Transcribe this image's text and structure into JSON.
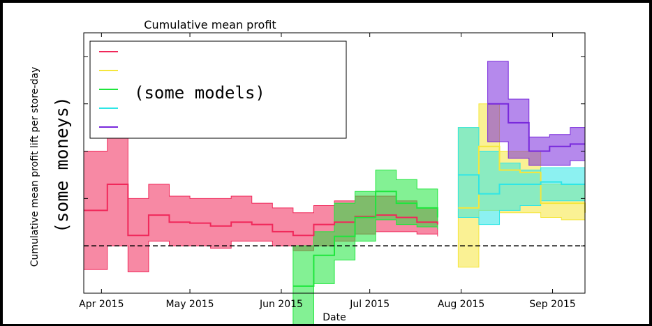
{
  "chart_data": {
    "type": "area",
    "title": "Cumulative mean profit",
    "xlabel": "Date",
    "ylabel": "Cumulative mean profit lift per store-day",
    "y_overlay": "(some moneys)",
    "legend_overlay": "(some models)",
    "legend_placement": "top-left",
    "grid": false,
    "x_ticks": [
      "Apr 2015",
      "May 2015",
      "Jun 2015",
      "Jul 2015",
      "Aug 2015",
      "Sep 2015"
    ],
    "xlim": [
      "2015-03-26",
      "2015-09-12"
    ],
    "ylim": [
      -1,
      4.5
    ],
    "baseline": 0,
    "series": [
      {
        "color": "#f0285a",
        "x": [
          "2015-03-26",
          "2015-04-03",
          "2015-04-10",
          "2015-04-17",
          "2015-04-24",
          "2015-05-01",
          "2015-05-08",
          "2015-05-15",
          "2015-05-22",
          "2015-05-29",
          "2015-06-05",
          "2015-06-12",
          "2015-06-19",
          "2015-06-26",
          "2015-07-03",
          "2015-07-10",
          "2015-07-17",
          "2015-07-24"
        ],
        "y": [
          0.75,
          1.3,
          0.22,
          0.65,
          0.5,
          0.48,
          0.42,
          0.5,
          0.45,
          0.3,
          0.22,
          0.45,
          0.5,
          0.62,
          0.65,
          0.6,
          0.5,
          0.45
        ],
        "lo": [
          -0.5,
          0.0,
          -0.55,
          0.1,
          0.0,
          0.0,
          -0.05,
          0.1,
          0.1,
          0.0,
          -0.1,
          0.0,
          0.1,
          0.25,
          0.3,
          0.3,
          0.25,
          0.2
        ],
        "hi": [
          2.0,
          2.4,
          1.0,
          1.3,
          1.05,
          1.0,
          1.0,
          1.05,
          0.9,
          0.8,
          0.7,
          0.85,
          0.95,
          1.05,
          1.05,
          0.95,
          0.8,
          0.75
        ]
      },
      {
        "color": "#f5e63c",
        "x": [
          "2015-07-31",
          "2015-08-07",
          "2015-08-14",
          "2015-08-21",
          "2015-08-28",
          "2015-09-04",
          "2015-09-12"
        ],
        "y": [
          0.8,
          2.1,
          1.6,
          1.55,
          0.9,
          0.9,
          0.7
        ],
        "lo": [
          -0.45,
          0.75,
          0.7,
          0.7,
          0.6,
          0.55,
          0.3
        ],
        "hi": [
          2.5,
          3.0,
          2.0,
          2.0,
          1.3,
          1.3,
          1.05
        ]
      },
      {
        "color": "#1ee63c",
        "x": [
          "2015-06-05",
          "2015-06-12",
          "2015-06-19",
          "2015-06-26",
          "2015-07-03",
          "2015-07-10",
          "2015-07-17",
          "2015-07-24"
        ],
        "y": [
          -0.85,
          -0.2,
          0.2,
          0.6,
          1.15,
          0.9,
          0.8,
          0.6
        ],
        "lo": [
          -1.75,
          -0.8,
          -0.3,
          0.1,
          0.55,
          0.45,
          0.4,
          0.35
        ],
        "hi": [
          0.0,
          0.3,
          0.9,
          1.15,
          1.6,
          1.4,
          1.2,
          1.05
        ]
      },
      {
        "color": "#2ee6e6",
        "x": [
          "2015-07-31",
          "2015-08-07",
          "2015-08-14",
          "2015-08-21",
          "2015-08-28",
          "2015-09-04",
          "2015-09-12"
        ],
        "y": [
          1.5,
          1.1,
          1.3,
          1.3,
          1.35,
          1.3,
          1.3
        ],
        "lo": [
          0.6,
          0.45,
          0.75,
          0.85,
          0.95,
          0.95,
          0.95
        ],
        "hi": [
          2.5,
          2.0,
          1.75,
          1.6,
          1.65,
          1.65,
          1.65
        ]
      },
      {
        "color": "#7828dc",
        "x": [
          "2015-08-10",
          "2015-08-17",
          "2015-08-24",
          "2015-08-31",
          "2015-09-07",
          "2015-09-12"
        ],
        "y": [
          3.0,
          2.6,
          2.0,
          2.1,
          2.15,
          2.15
        ],
        "lo": [
          2.2,
          1.85,
          1.7,
          1.7,
          1.8,
          1.8
        ],
        "hi": [
          3.9,
          3.1,
          2.3,
          2.35,
          2.5,
          2.5
        ]
      }
    ]
  }
}
